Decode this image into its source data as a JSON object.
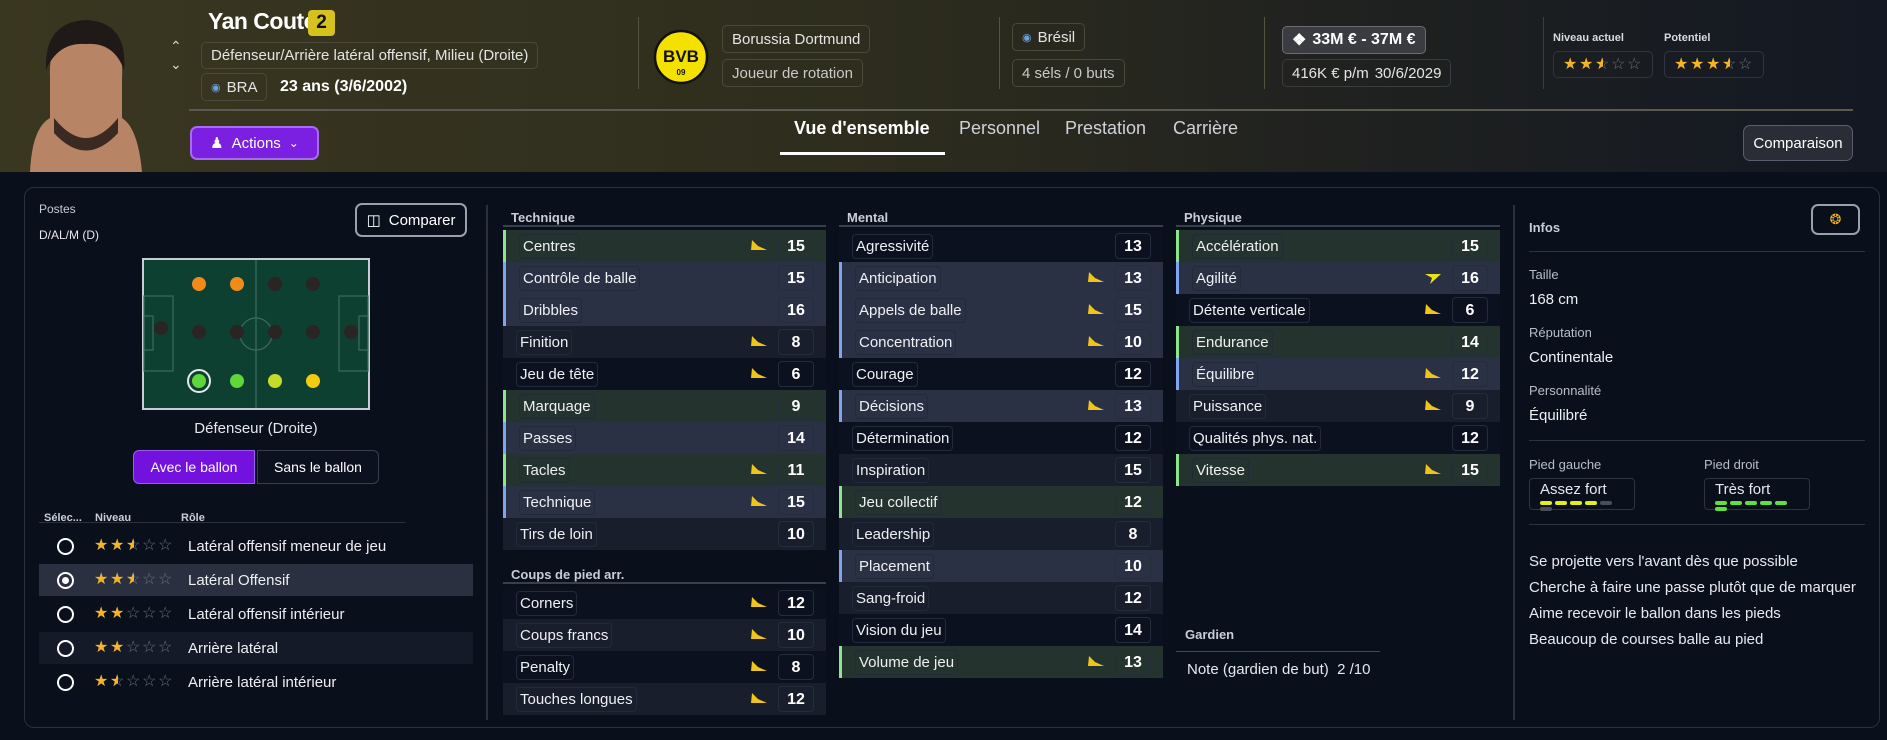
{
  "header": {
    "player_name": "Yan Couto",
    "squad_number": "2",
    "position": "Défenseur/Arrière latéral offensif, Milieu (Droite)",
    "nationality_code": "BRA",
    "age": "23 ans (3/6/2002)",
    "club": "Borussia Dortmund",
    "squad_status": "Joueur de rotation",
    "nation": "Brésil",
    "caps": "4 séls / 0 buts",
    "value": "33M € - 37M €",
    "wage": "416K € p/m",
    "contract_end": "30/6/2029",
    "current_ability_label": "Niveau actuel",
    "current_ability_stars": 2.5,
    "potential_label": "Potentiel",
    "potential_stars": 3.5,
    "club_logo_text": "BVB",
    "club_logo_sub": "09",
    "actions_label": "Actions",
    "compare_label": "Comparaison"
  },
  "tabs": [
    {
      "label": "Vue d'ensemble",
      "active": true
    },
    {
      "label": "Personnel"
    },
    {
      "label": "Prestation"
    },
    {
      "label": "Carrière"
    }
  ],
  "positions": {
    "label": "Postes",
    "value": "D/AL/M (D)",
    "compare_label": "Comparer",
    "selected_position": "Défenseur (Droite)",
    "pitch_rows": [
      [
        "none",
        "orange",
        "orange",
        "dark",
        "dark",
        "none"
      ],
      [
        "dark",
        "dark",
        "dark",
        "dark",
        "dark",
        "dark"
      ],
      [
        "none",
        "green-selected",
        "green",
        "lime",
        "yellow",
        "none"
      ]
    ],
    "toggle": [
      "Avec le ballon",
      "Sans le ballon"
    ],
    "toggle_active": 0,
    "role_headers": [
      "Sélec...",
      "Niveau",
      "Rôle"
    ],
    "roles": [
      {
        "name": "Latéral offensif meneur de jeu",
        "stars": 2.5,
        "selected": false
      },
      {
        "name": "Latéral Offensif",
        "stars": 2.5,
        "selected": true
      },
      {
        "name": "Latéral offensif intérieur",
        "stars": 2,
        "selected": false
      },
      {
        "name": "Arrière latéral",
        "stars": 2,
        "selected": false
      },
      {
        "name": "Arrière latéral intérieur",
        "stars": 1.5,
        "selected": false
      }
    ]
  },
  "attributes": {
    "technique": {
      "title": "Technique",
      "items": [
        {
          "name": "Centres",
          "value": 15,
          "hl": "key",
          "trend": "down"
        },
        {
          "name": "Contrôle de balle",
          "value": 15,
          "hl": "pref"
        },
        {
          "name": "Dribbles",
          "value": 16,
          "hl": "pref"
        },
        {
          "name": "Finition",
          "value": 8,
          "trend": "down"
        },
        {
          "name": "Jeu de tête",
          "value": 6,
          "trend": "down"
        },
        {
          "name": "Marquage",
          "value": 9,
          "hl": "key"
        },
        {
          "name": "Passes",
          "value": 14,
          "hl": "pref"
        },
        {
          "name": "Tacles",
          "value": 11,
          "hl": "key",
          "trend": "down"
        },
        {
          "name": "Technique",
          "value": 15,
          "hl": "pref",
          "trend": "down"
        },
        {
          "name": "Tirs de loin",
          "value": 10
        }
      ]
    },
    "set_pieces": {
      "title": "Coups de pied arr.",
      "items": [
        {
          "name": "Corners",
          "value": 12,
          "trend": "down"
        },
        {
          "name": "Coups francs",
          "value": 10,
          "trend": "down"
        },
        {
          "name": "Penalty",
          "value": 8,
          "trend": "down"
        },
        {
          "name": "Touches longues",
          "value": 12,
          "trend": "down"
        }
      ]
    },
    "mental": {
      "title": "Mental",
      "items": [
        {
          "name": "Agressivité",
          "value": 13
        },
        {
          "name": "Anticipation",
          "value": 13,
          "hl": "pref",
          "trend": "down"
        },
        {
          "name": "Appels de balle",
          "value": 15,
          "hl": "pref",
          "trend": "down"
        },
        {
          "name": "Concentration",
          "value": 10,
          "hl": "pref",
          "trend": "down"
        },
        {
          "name": "Courage",
          "value": 12
        },
        {
          "name": "Décisions",
          "value": 13,
          "hl": "pref",
          "trend": "down"
        },
        {
          "name": "Détermination",
          "value": 12
        },
        {
          "name": "Inspiration",
          "value": 15
        },
        {
          "name": "Jeu collectif",
          "value": 12,
          "hl": "key"
        },
        {
          "name": "Leadership",
          "value": 8
        },
        {
          "name": "Placement",
          "value": 10,
          "hl": "pref"
        },
        {
          "name": "Sang-froid",
          "value": 12
        },
        {
          "name": "Vision du jeu",
          "value": 14
        },
        {
          "name": "Volume de jeu",
          "value": 13,
          "hl": "key",
          "trend": "down"
        }
      ]
    },
    "physical": {
      "title": "Physique",
      "items": [
        {
          "name": "Accélération",
          "value": 15,
          "hl": "key"
        },
        {
          "name": "Agilité",
          "value": 16,
          "hl": "pref",
          "trend": "up"
        },
        {
          "name": "Détente verticale",
          "value": 6,
          "trend": "down"
        },
        {
          "name": "Endurance",
          "value": 14,
          "hl": "key"
        },
        {
          "name": "Équilibre",
          "value": 12,
          "hl": "pref",
          "trend": "down"
        },
        {
          "name": "Puissance",
          "value": 9,
          "trend": "down"
        },
        {
          "name": "Qualités phys. nat.",
          "value": 12
        },
        {
          "name": "Vitesse",
          "value": 15,
          "hl": "key",
          "trend": "down"
        }
      ]
    },
    "goalkeeper": {
      "title": "Gardien",
      "note_label": "Note (gardien de but)",
      "note_value": "2 /10"
    }
  },
  "info": {
    "title": "Infos",
    "height_label": "Taille",
    "height": "168 cm",
    "reputation_label": "Réputation",
    "reputation": "Continentale",
    "personality_label": "Personnalité",
    "personality": "Équilibré",
    "left_foot_label": "Pied gauche",
    "left_foot": "Assez fort",
    "left_foot_level": 4,
    "right_foot_label": "Pied droit",
    "right_foot": "Très fort",
    "right_foot_level": 6,
    "foot_level_max": 6,
    "traits": [
      "Se projette vers l'avant dès que possible",
      "Cherche à faire une passe plutôt que de marquer",
      "Aime recevoir le ballon dans les pieds",
      "Beaucoup de courses balle au pied"
    ]
  },
  "colors": {
    "accent": "#7b1fe0",
    "key_attr": "#8de68d",
    "pref_attr": "#7fa4f0",
    "star": "#f5b427",
    "trend_arrow": "#f0c419"
  }
}
